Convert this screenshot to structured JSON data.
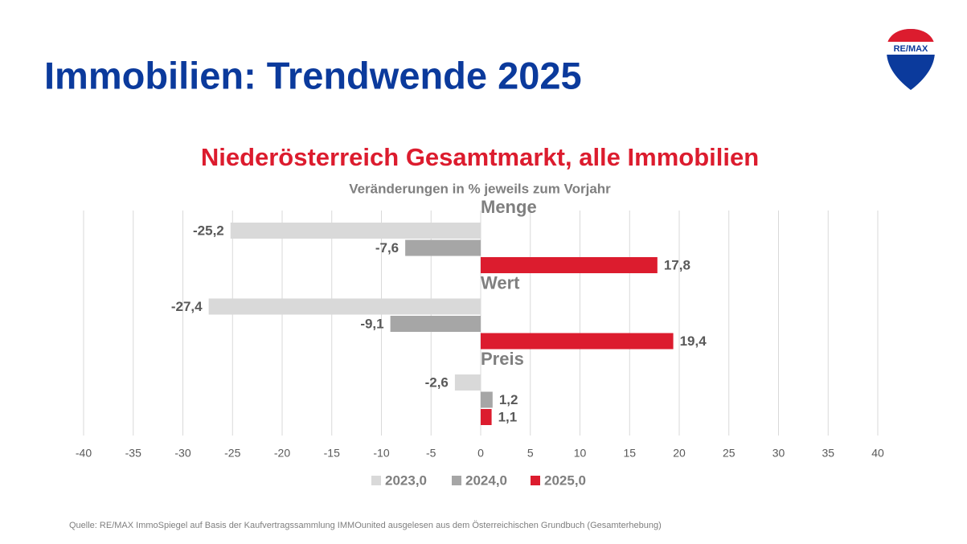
{
  "title": "Immobilien: Trendwende 2025",
  "logo": "RE/MAX",
  "source": "Quelle: RE/MAX ImmoSpiegel auf Basis der Kaufvertragssammlung IMMOunited ausgelesen aus dem Österreichischen Grundbuch (Gesamterhebung)",
  "chart_data": {
    "type": "hbar",
    "title": "Niederösterreich Gesamtmarkt, alle Immobilien",
    "subtitle": "Veränderungen in % jeweils zum Vorjahr",
    "categories": [
      "Menge",
      "Wert",
      "Preis"
    ],
    "series": [
      {
        "name": "2023,0",
        "color": "#d9d9d9",
        "values": [
          -25.2,
          -27.4,
          -2.6
        ],
        "value_labels": [
          "-25,2",
          "-27,4",
          "-2,6"
        ]
      },
      {
        "name": "2024,0",
        "color": "#a6a6a6",
        "values": [
          -7.6,
          -9.1,
          1.2
        ],
        "value_labels": [
          "-7,6",
          "-9,1",
          "1,2"
        ]
      },
      {
        "name": "2025,0",
        "color": "#dc1c2e",
        "values": [
          17.8,
          19.4,
          1.1
        ],
        "value_labels": [
          "17,8",
          "19,4",
          "1,1"
        ]
      }
    ],
    "xlim": [
      -40,
      40
    ],
    "xticks": [
      -40,
      -35,
      -30,
      -25,
      -20,
      -15,
      -10,
      -5,
      0,
      5,
      10,
      15,
      20,
      25,
      30,
      35,
      40
    ],
    "grid": true,
    "legend": "bottom"
  }
}
